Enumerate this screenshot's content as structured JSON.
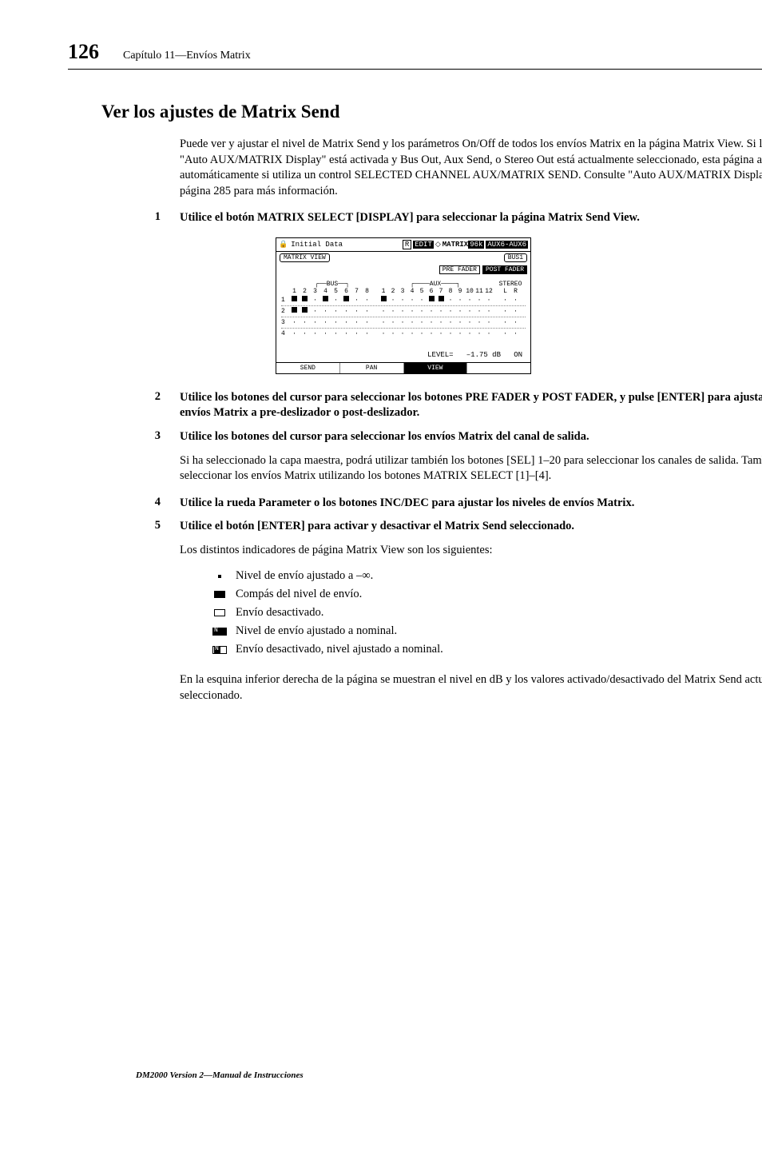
{
  "header": {
    "page_number": "126",
    "chapter": "Capítulo 11—Envíos Matrix"
  },
  "section_title": "Ver los ajustes de Matrix Send",
  "intro": "Puede ver y ajustar el nivel de Matrix Send y los parámetros On/Off de todos los envíos Matrix en la página Matrix View. Si la preferencia \"Auto AUX/MATRIX Display\" está activada y Bus Out, Aux Send, o Stereo Out está actualmente seleccionado, esta página aparece automáticamente si utiliza un control SELECTED CHANNEL AUX/MATRIX SEND. Consulte  \"Auto AUX/MATRIX Display\" en la página 285 para más información.",
  "steps": [
    {
      "n": "1",
      "text": "Utilice el botón MATRIX SELECT [DISPLAY] para seleccionar la página Matrix Send View."
    },
    {
      "n": "2",
      "text": "Utilice los botones del cursor para seleccionar los botones PRE FADER y POST FADER, y pulse [ENTER] para ajustar todos los envíos Matrix a pre-deslizador o post-deslizador."
    },
    {
      "n": "3",
      "text": "Utilice los botones del cursor para seleccionar los envíos Matrix del canal de salida."
    },
    {
      "n": "4",
      "text": "Utilice la rueda Parameter o los botones INC/DEC para ajustar los niveles de envíos Matrix."
    },
    {
      "n": "5",
      "text": "Utilice el botón [ENTER] para activar y desactivar el Matrix Send seleccionado."
    }
  ],
  "para_after_3": "Si ha seleccionado la capa maestra, podrá utilizar también los botones [SEL] 1–20 para seleccionar los canales de salida. También puede seleccionar los envíos Matrix utilizando los botones MATRIX SELECT [1]–[4].",
  "para_after_5": "Los distintos indicadores de página Matrix View son los siguientes:",
  "indicators": [
    {
      "icon": "dot",
      "text": "Nivel de envío ajustado a –∞."
    },
    {
      "icon": "filled",
      "text": "Compás del nivel de envío."
    },
    {
      "icon": "outline",
      "text": "Envío desactivado."
    },
    {
      "icon": "nominal_on",
      "text": "Nivel de envío ajustado a nominal."
    },
    {
      "icon": "nominal_off",
      "text": "Envío desactivado, nivel ajustado a nominal."
    }
  ],
  "closing": "En la esquina inferior derecha de la página se muestran el nivel en dB y los valores activado/desactivado del Matrix Send actualmente seleccionado.",
  "footer": "DM2000 Version 2—Manual de Instrucciones",
  "lcd": {
    "lock_icon": "🔒",
    "preset": "Initial Data",
    "r_badge": "R",
    "edit_badge": "EDIT",
    "diamond": "◇",
    "screen": "MATRIX",
    "rate_badge": "96k",
    "channel_badge": "AUX6-AUX6",
    "view_tag": "MATRIX VIEW",
    "bus_tag": "BUS1",
    "pre_btn": "PRE FADER",
    "post_btn": "POST FADER",
    "group_bus": "BUS",
    "group_aux": "AUX",
    "group_stereo": "STEREO",
    "bus_cols": [
      "1",
      "2",
      "3",
      "4",
      "5",
      "6",
      "7",
      "8"
    ],
    "aux_cols": [
      "1",
      "2",
      "3",
      "4",
      "5",
      "6",
      "7",
      "8",
      "9",
      "10",
      "11",
      "12"
    ],
    "stereo_cols": [
      "L",
      "R"
    ],
    "rows": [
      {
        "n": "1",
        "bus": [
          1,
          1,
          0,
          1,
          0,
          1,
          0,
          0
        ],
        "aux": [
          1,
          0,
          0,
          0,
          0,
          1,
          1,
          0,
          0,
          0,
          0,
          0
        ],
        "st": [
          0,
          0
        ]
      },
      {
        "n": "2",
        "bus": [
          1,
          1,
          0,
          0,
          0,
          0,
          0,
          0
        ],
        "aux": [
          0,
          0,
          0,
          0,
          0,
          0,
          0,
          0,
          0,
          0,
          0,
          0
        ],
        "st": [
          0,
          0
        ]
      },
      {
        "n": "3",
        "bus": [
          0,
          0,
          0,
          0,
          0,
          0,
          0,
          0
        ],
        "aux": [
          0,
          0,
          0,
          0,
          0,
          0,
          0,
          0,
          0,
          0,
          0,
          0
        ],
        "st": [
          0,
          0
        ]
      },
      {
        "n": "4",
        "bus": [
          0,
          0,
          0,
          0,
          0,
          0,
          0,
          0
        ],
        "aux": [
          0,
          0,
          0,
          0,
          0,
          0,
          0,
          0,
          0,
          0,
          0,
          0
        ],
        "st": [
          0,
          0
        ]
      }
    ],
    "level_label": "LEVEL=",
    "level_value": "–1.75 dB",
    "level_on": "ON",
    "tabs": [
      "SEND",
      "PAN",
      "VIEW",
      ""
    ]
  }
}
